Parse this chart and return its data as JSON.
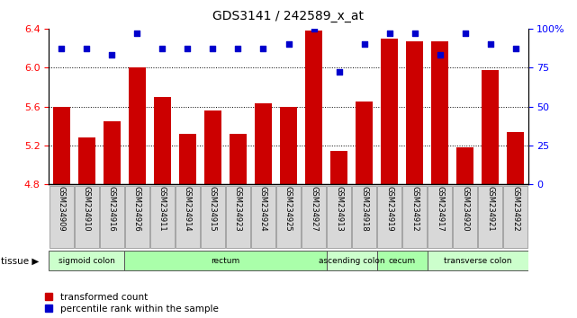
{
  "title": "GDS3141 / 242589_x_at",
  "samples": [
    "GSM234909",
    "GSM234910",
    "GSM234916",
    "GSM234926",
    "GSM234911",
    "GSM234914",
    "GSM234915",
    "GSM234923",
    "GSM234924",
    "GSM234925",
    "GSM234927",
    "GSM234913",
    "GSM234918",
    "GSM234919",
    "GSM234912",
    "GSM234917",
    "GSM234920",
    "GSM234921",
    "GSM234922"
  ],
  "bar_values": [
    5.6,
    5.28,
    5.45,
    6.0,
    5.7,
    5.32,
    5.56,
    5.32,
    5.63,
    5.6,
    6.38,
    5.14,
    5.65,
    6.3,
    6.27,
    6.27,
    5.18,
    5.97,
    5.34
  ],
  "percentile_values": [
    87,
    87,
    83,
    97,
    87,
    87,
    87,
    87,
    87,
    90,
    100,
    72,
    90,
    97,
    97,
    83,
    97,
    90,
    87
  ],
  "ylim_left": [
    4.8,
    6.4
  ],
  "ylim_right": [
    0,
    100
  ],
  "yticks_left": [
    4.8,
    5.2,
    5.6,
    6.0,
    6.4
  ],
  "yticks_right": [
    0,
    25,
    50,
    75,
    100
  ],
  "ytick_right_labels": [
    "0",
    "25",
    "50",
    "75",
    "100%"
  ],
  "grid_values": [
    5.2,
    5.6,
    6.0
  ],
  "bar_color": "#cc0000",
  "dot_color": "#0000cc",
  "bg_color": "#ffffff",
  "tissue_groups": [
    {
      "label": "sigmoid colon",
      "start": 0,
      "end": 3,
      "color": "#ccffcc"
    },
    {
      "label": "rectum",
      "start": 3,
      "end": 11,
      "color": "#aaffaa"
    },
    {
      "label": "ascending colon",
      "start": 11,
      "end": 13,
      "color": "#ccffcc"
    },
    {
      "label": "cecum",
      "start": 13,
      "end": 15,
      "color": "#aaffaa"
    },
    {
      "label": "transverse colon",
      "start": 15,
      "end": 19,
      "color": "#ccffcc"
    }
  ],
  "legend_bar_label": "transformed count",
  "legend_dot_label": "percentile rank within the sample",
  "tissue_label": "tissue",
  "bar_width": 0.7,
  "bar_bottom": 4.8
}
